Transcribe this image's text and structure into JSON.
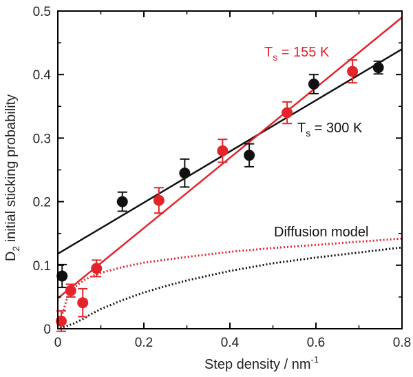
{
  "chart_data": {
    "type": "scatter",
    "xlabel_main": "Step density / nm",
    "xlabel_sup": "-1",
    "ylabel_pre": "D",
    "ylabel_sub": "2",
    "ylabel_post": " initial sticking probability",
    "xlim": [
      0,
      0.8
    ],
    "ylim": [
      0,
      0.5
    ],
    "x_ticks": [
      0,
      0.2,
      0.4,
      0.6,
      0.8
    ],
    "x_tick_labels": [
      "0",
      "0.2",
      "0.4",
      "0.6",
      "0.8"
    ],
    "y_ticks": [
      0,
      0.1,
      0.2,
      0.3,
      0.4,
      0.5
    ],
    "y_tick_labels": [
      "0",
      "0.1",
      "0.2",
      "0.3",
      "0.4",
      "0.5"
    ],
    "grid": false,
    "series": [
      {
        "color": "#e3242b",
        "label_main": "T",
        "label_sub": "s",
        "label_rest": " = 155 K",
        "points": [
          {
            "x": 0.008,
            "y": 0.012,
            "err": 0.016
          },
          {
            "x": 0.03,
            "y": 0.06,
            "err": 0.01
          },
          {
            "x": 0.058,
            "y": 0.041,
            "err": 0.022
          },
          {
            "x": 0.09,
            "y": 0.095,
            "err": 0.013
          },
          {
            "x": 0.235,
            "y": 0.202,
            "err": 0.02
          },
          {
            "x": 0.383,
            "y": 0.28,
            "err": 0.018
          },
          {
            "x": 0.533,
            "y": 0.34,
            "err": 0.017
          },
          {
            "x": 0.685,
            "y": 0.405,
            "err": 0.018
          }
        ],
        "fit_line": {
          "x": [
            0.0,
            0.8
          ],
          "y": [
            0.048,
            0.49
          ]
        },
        "model_curve": {
          "x": [
            0.005,
            0.01,
            0.02,
            0.03,
            0.04,
            0.06,
            0.08,
            0.1,
            0.15,
            0.2,
            0.3,
            0.4,
            0.5,
            0.6,
            0.7,
            0.8
          ],
          "y": [
            0.008,
            0.022,
            0.045,
            0.058,
            0.066,
            0.076,
            0.083,
            0.088,
            0.097,
            0.104,
            0.113,
            0.121,
            0.127,
            0.132,
            0.137,
            0.142
          ]
        }
      },
      {
        "color": "#111111",
        "label_main": "T",
        "label_sub": "s",
        "label_rest": " = 300 K",
        "points": [
          {
            "x": 0.01,
            "y": 0.083,
            "err": 0.018
          },
          {
            "x": 0.15,
            "y": 0.2,
            "err": 0.015
          },
          {
            "x": 0.295,
            "y": 0.245,
            "err": 0.022
          },
          {
            "x": 0.445,
            "y": 0.273,
            "err": 0.018
          },
          {
            "x": 0.595,
            "y": 0.385,
            "err": 0.015
          },
          {
            "x": 0.745,
            "y": 0.411,
            "err": 0.01
          }
        ],
        "fit_line": {
          "x": [
            0.0,
            0.8
          ],
          "y": [
            0.118,
            0.44
          ]
        },
        "model_curve": {
          "x": [
            0.005,
            0.02,
            0.04,
            0.06,
            0.08,
            0.1,
            0.15,
            0.2,
            0.25,
            0.3,
            0.4,
            0.5,
            0.6,
            0.7,
            0.8
          ],
          "y": [
            0.001,
            0.004,
            0.009,
            0.016,
            0.024,
            0.031,
            0.045,
            0.057,
            0.067,
            0.076,
            0.091,
            0.103,
            0.112,
            0.12,
            0.128
          ]
        }
      }
    ],
    "model_label": "Diffusion model"
  }
}
